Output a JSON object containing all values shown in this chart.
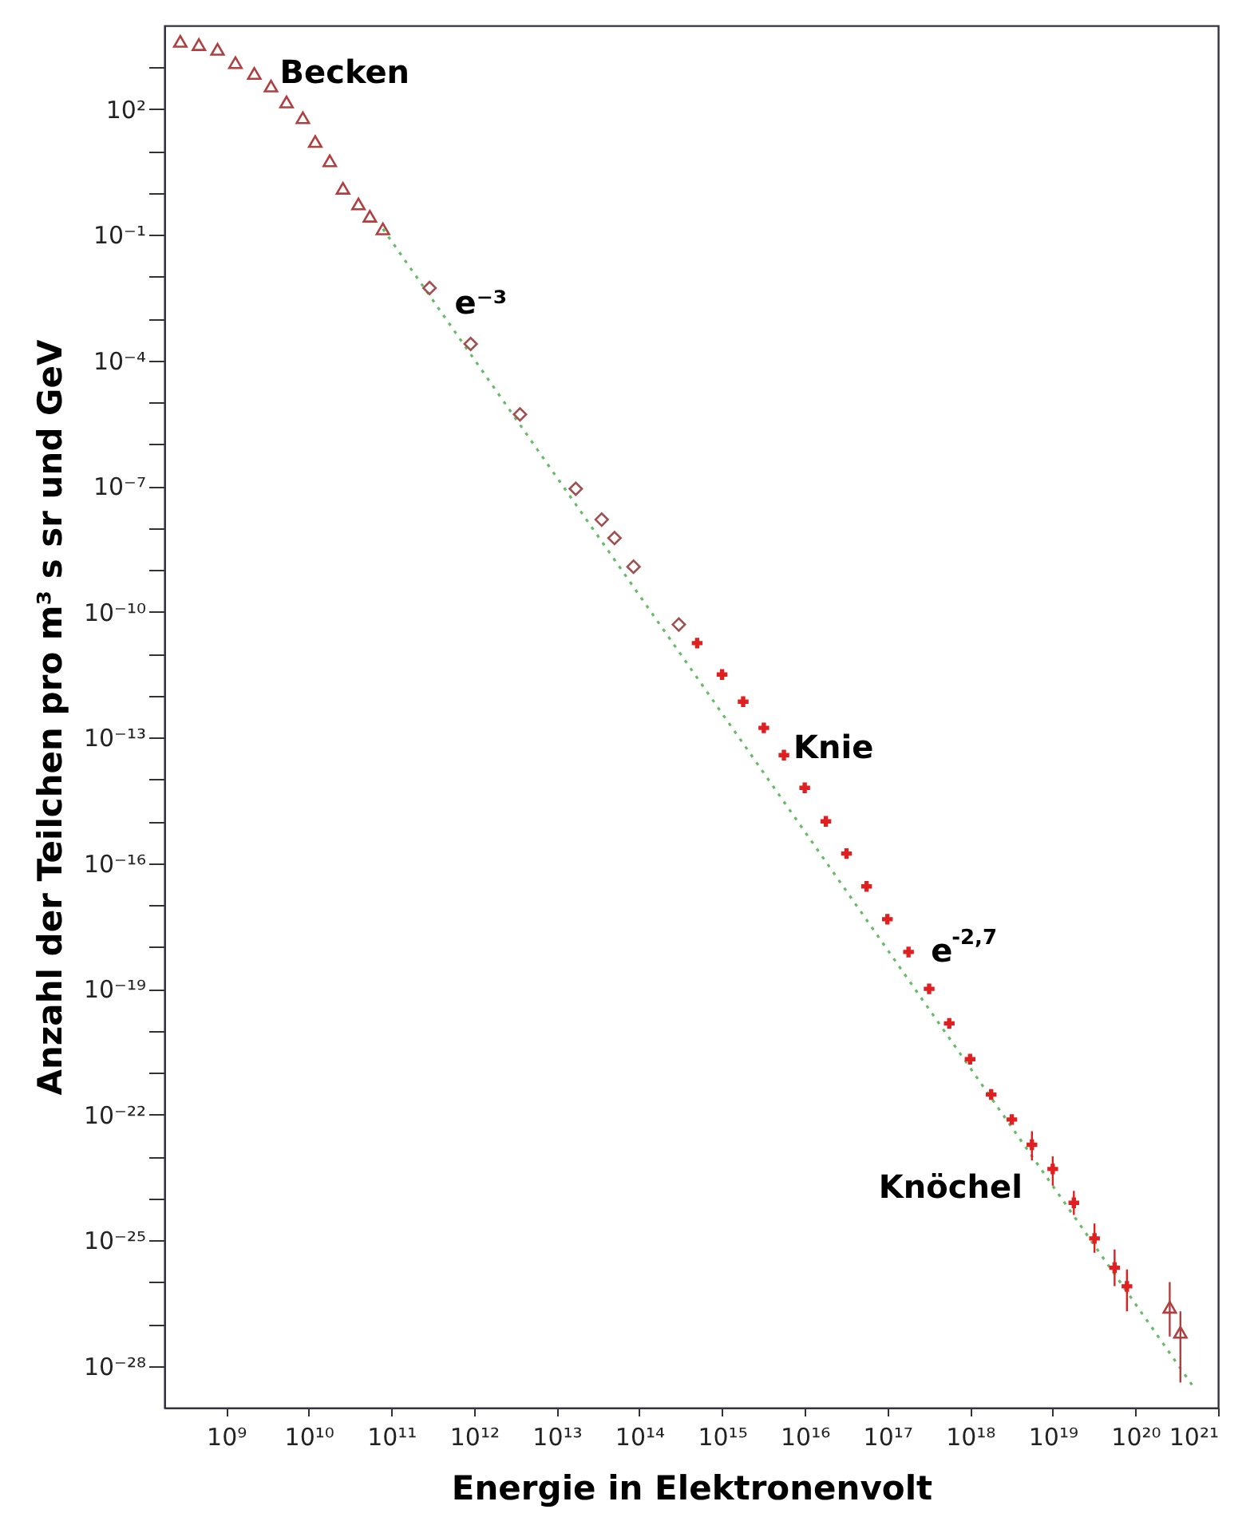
{
  "chart_data": {
    "type": "scatter",
    "xlabel": "Energie in Elektronenvolt",
    "ylabel": "Anzahl der Teilchen pro m³ s sr und GeV",
    "log": "xy",
    "grid": false,
    "xlim": [
      180000000.0,
      1e+21
    ],
    "ylim": [
      1e-29,
      10000.0
    ],
    "xticks": [
      {
        "value": 1000000000.0,
        "label": "10⁹"
      },
      {
        "value": 10000000000.0,
        "label": "10¹⁰"
      },
      {
        "value": 100000000000.0,
        "label": "10¹¹"
      },
      {
        "value": 1000000000000.0,
        "label": "10¹²"
      },
      {
        "value": 10000000000000.0,
        "label": "10¹³"
      },
      {
        "value": 100000000000000.0,
        "label": "10¹⁴"
      },
      {
        "value": 1000000000000000.0,
        "label": "10¹⁵"
      },
      {
        "value": 1e+16,
        "label": "10¹⁶"
      },
      {
        "value": 1e+17,
        "label": "10¹⁷"
      },
      {
        "value": 1e+18,
        "label": "10¹⁸"
      },
      {
        "value": 1e+19,
        "label": "10¹⁹"
      },
      {
        "value": 1e+20,
        "label": "10²⁰"
      },
      {
        "value": 1e+21,
        "label": "10²¹"
      }
    ],
    "yticks": [
      {
        "value": 1000.0,
        "label": null
      },
      {
        "value": 100.0,
        "label": "10²"
      },
      {
        "value": 10.0,
        "label": null
      },
      {
        "value": 1,
        "label": null
      },
      {
        "value": 0.1,
        "label": "10⁻¹"
      },
      {
        "value": 0.01,
        "label": null
      },
      {
        "value": 0.001,
        "label": null
      },
      {
        "value": 0.0001,
        "label": "10⁻⁴"
      },
      {
        "value": 1e-05,
        "label": null
      },
      {
        "value": 1e-06,
        "label": null
      },
      {
        "value": 1e-07,
        "label": "10⁻⁷"
      },
      {
        "value": 1e-08,
        "label": null
      },
      {
        "value": 1e-09,
        "label": null
      },
      {
        "value": 1e-10,
        "label": "10⁻¹⁰"
      },
      {
        "value": 1e-11,
        "label": null
      },
      {
        "value": 1e-12,
        "label": null
      },
      {
        "value": 1e-13,
        "label": "10⁻¹³"
      },
      {
        "value": 1e-14,
        "label": null
      },
      {
        "value": 1e-15,
        "label": null
      },
      {
        "value": 1e-16,
        "label": "10⁻¹⁶"
      },
      {
        "value": 1e-17,
        "label": null
      },
      {
        "value": 1e-18,
        "label": null
      },
      {
        "value": 1e-19,
        "label": "10⁻¹⁹"
      },
      {
        "value": 1e-20,
        "label": null
      },
      {
        "value": 1e-21,
        "label": null
      },
      {
        "value": 1e-22,
        "label": "10⁻²²"
      },
      {
        "value": 1e-23,
        "label": null
      },
      {
        "value": 1e-24,
        "label": null
      },
      {
        "value": 1e-25,
        "label": "10⁻²⁵"
      },
      {
        "value": 1e-26,
        "label": null
      },
      {
        "value": 1e-27,
        "label": null
      },
      {
        "value": 1e-28,
        "label": "10⁻²⁸"
      }
    ],
    "series": [
      {
        "type": "line",
        "color": "#66bb66",
        "line_style": "dotted",
        "marker": "none",
        "x": [
          79000000000.0,
          5e+20
        ],
        "values": [
          0.14,
          3.2e-29
        ]
      },
      {
        "color": "#b04040",
        "marker": "triangle",
        "x": [
          280000000.0,
          470000000.0,
          790000000.0,
          1300000000.0,
          2200000000.0,
          3500000000.0,
          5400000000.0,
          8500000000.0,
          12000000000.0,
          18000000000.0,
          26000000000.0,
          40000000000.0,
          55000000000.0,
          79000000000.0,
          2.6e+20,
          3.5e+20
        ],
        "values": [
          4200.0,
          3500.0,
          2700.0,
          1300.0,
          720.0,
          360.0,
          150.0,
          63,
          17,
          5.9,
          1.3,
          0.55,
          0.28,
          0.14,
          2.5e-27,
          6.3e-28
        ],
        "errors": [
          null,
          null,
          null,
          null,
          null,
          null,
          null,
          null,
          null,
          null,
          null,
          null,
          null,
          null,
          [
            5e-28,
            1e-26
          ],
          [
            4e-29,
            2e-27
          ]
        ]
      },
      {
        "color": "#a05050",
        "marker": "diamond",
        "x": [
          290000000000.0,
          910000000000.0,
          3600000000000.0,
          17000000000000.0,
          35000000000000.0,
          50000000000000.0,
          85000000000000.0,
          300000000000000.0
        ],
        "values": [
          0.0054,
          0.00025,
          5.2e-06,
          8.7e-08,
          1.6e-08,
          5.8e-09,
          1.2e-09,
          5e-11
        ]
      },
      {
        "color": "#e02020",
        "marker": "cross",
        "x": [
          500000000000000.0,
          1000000000000000.0,
          1800000000000000.0,
          3200000000000000.0,
          5600000000000000.0,
          1e+16,
          1.8e+16,
          3.2e+16,
          5.6e+16,
          1e+17,
          1.8e+17,
          3.2e+17,
          5.6e+17,
          1e+18,
          1.8e+18,
          3.2e+18,
          5.6e+18,
          1e+19,
          1.8e+19,
          3.2e+19,
          5.6e+19,
          7.9e+19
        ],
        "values": [
          1.8e-11,
          3.2e-12,
          7.2e-13,
          1.7e-13,
          3.8e-14,
          6.3e-15,
          1e-15,
          1.7e-16,
          2.8e-17,
          4.6e-18,
          7.6e-19,
          1e-19,
          1.5e-20,
          2.1e-21,
          3e-22,
          7.6e-23,
          1.9e-23,
          5e-24,
          7.8e-25,
          1.1e-25,
          2.2e-26,
          7.9e-27
        ],
        "errors": [
          null,
          null,
          null,
          null,
          null,
          null,
          null,
          null,
          null,
          null,
          null,
          null,
          null,
          null,
          null,
          null,
          [
            8e-24,
            4e-23
          ],
          [
            2e-24,
            1e-23
          ],
          [
            4e-25,
            1.5e-24
          ],
          [
            5e-26,
            2.5e-25
          ],
          [
            8e-27,
            6e-26
          ],
          [
            2e-27,
            2e-26
          ]
        ]
      }
    ],
    "annotations": [
      {
        "text": "Becken",
        "x": 2200000000.0,
        "y": 720.0
      },
      {
        "text": "e⁻³",
        "x": 910000000000.0,
        "y": 0.00025
      },
      {
        "text": "Knie",
        "x": 5600000000000000.0,
        "y": 3.8e-14
      },
      {
        "text": "e$^{-2,7}$",
        "x": 1.8e+17,
        "y": 7.6e-19
      },
      {
        "text": "Knöchel",
        "x": 1e+19,
        "y": 5e-24
      }
    ]
  }
}
